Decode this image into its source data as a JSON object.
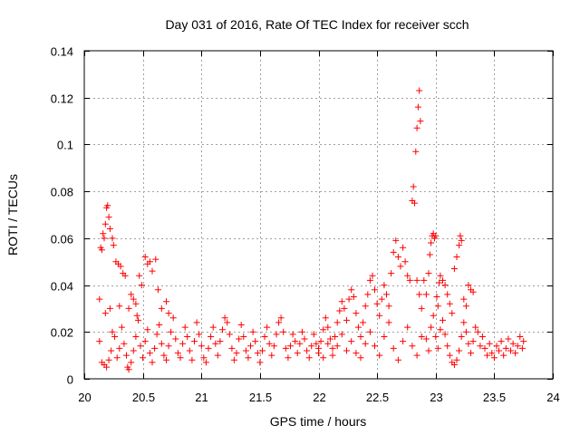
{
  "chart_data": {
    "type": "scatter",
    "title": "Day 031 of 2016, Rate Of TEC Index for receiver scch",
    "xlabel": "GPS time / hours",
    "ylabel": "ROTI / TECUs",
    "xlim": [
      20,
      24
    ],
    "ylim": [
      0,
      0.14
    ],
    "xticks": [
      20,
      20.5,
      21,
      21.5,
      22,
      22.5,
      23,
      23.5,
      24
    ],
    "xtick_labels": [
      "20",
      "20.5",
      "21",
      "21.5",
      "22",
      "22.5",
      "23",
      "23.5",
      "24"
    ],
    "yticks": [
      0,
      0.02,
      0.04,
      0.06,
      0.08,
      0.1,
      0.12,
      0.14
    ],
    "ytick_labels": [
      "0",
      "0.02",
      "0.04",
      "0.06",
      "0.08",
      "0.1",
      "0.12",
      "0.14"
    ],
    "grid": true,
    "marker": "+",
    "color": "#ff0000",
    "series": [
      {
        "name": "ROTI",
        "points": [
          [
            20.13,
            0.034
          ],
          [
            20.14,
            0.056
          ],
          [
            20.15,
            0.055
          ],
          [
            20.16,
            0.062
          ],
          [
            20.17,
            0.06
          ],
          [
            20.18,
            0.066
          ],
          [
            20.19,
            0.073
          ],
          [
            20.2,
            0.074
          ],
          [
            20.21,
            0.069
          ],
          [
            20.22,
            0.064
          ],
          [
            20.24,
            0.06
          ],
          [
            20.25,
            0.057
          ],
          [
            20.27,
            0.05
          ],
          [
            20.29,
            0.049
          ],
          [
            20.31,
            0.048
          ],
          [
            20.33,
            0.045
          ],
          [
            20.35,
            0.044
          ],
          [
            20.4,
            0.036
          ],
          [
            20.42,
            0.034
          ],
          [
            20.45,
            0.027
          ],
          [
            20.47,
            0.044
          ],
          [
            20.49,
            0.04
          ],
          [
            20.52,
            0.052
          ],
          [
            20.54,
            0.049
          ],
          [
            20.56,
            0.05
          ],
          [
            20.58,
            0.046
          ],
          [
            20.61,
            0.051
          ],
          [
            20.63,
            0.038
          ],
          [
            20.18,
            0.028
          ],
          [
            20.22,
            0.03
          ],
          [
            20.3,
            0.031
          ],
          [
            20.38,
            0.03
          ],
          [
            20.44,
            0.032
          ],
          [
            20.66,
            0.03
          ],
          [
            20.7,
            0.033
          ],
          [
            20.72,
            0.028
          ],
          [
            20.13,
            0.016
          ],
          [
            20.15,
            0.007
          ],
          [
            20.17,
            0.006
          ],
          [
            20.19,
            0.005
          ],
          [
            20.21,
            0.008
          ],
          [
            20.23,
            0.012
          ],
          [
            20.24,
            0.02
          ],
          [
            20.26,
            0.018
          ],
          [
            20.28,
            0.009
          ],
          [
            20.3,
            0.013
          ],
          [
            20.32,
            0.022
          ],
          [
            20.34,
            0.015
          ],
          [
            20.36,
            0.01
          ],
          [
            20.37,
            0.005
          ],
          [
            20.38,
            0.004
          ],
          [
            20.4,
            0.007
          ],
          [
            20.42,
            0.012
          ],
          [
            20.44,
            0.018
          ],
          [
            20.46,
            0.025
          ],
          [
            20.48,
            0.014
          ],
          [
            20.5,
            0.009
          ],
          [
            20.52,
            0.016
          ],
          [
            20.54,
            0.021
          ],
          [
            20.56,
            0.011
          ],
          [
            20.58,
            0.007
          ],
          [
            20.6,
            0.013
          ],
          [
            20.62,
            0.019
          ],
          [
            20.64,
            0.023
          ],
          [
            20.66,
            0.015
          ],
          [
            20.68,
            0.01
          ],
          [
            20.7,
            0.008
          ],
          [
            20.72,
            0.014
          ],
          [
            20.74,
            0.02
          ],
          [
            20.76,
            0.026
          ],
          [
            20.78,
            0.017
          ],
          [
            20.8,
            0.011
          ],
          [
            20.82,
            0.009
          ],
          [
            20.84,
            0.015
          ],
          [
            20.86,
            0.022
          ],
          [
            20.88,
            0.018
          ],
          [
            20.9,
            0.012
          ],
          [
            20.92,
            0.008
          ],
          [
            20.94,
            0.016
          ],
          [
            20.96,
            0.024
          ],
          [
            20.98,
            0.019
          ],
          [
            21.0,
            0.014
          ],
          [
            21.02,
            0.009
          ],
          [
            21.04,
            0.007
          ],
          [
            21.06,
            0.013
          ],
          [
            21.08,
            0.018
          ],
          [
            21.1,
            0.022
          ],
          [
            21.12,
            0.015
          ],
          [
            21.14,
            0.01
          ],
          [
            21.16,
            0.016
          ],
          [
            21.18,
            0.021
          ],
          [
            21.2,
            0.026
          ],
          [
            21.22,
            0.024
          ],
          [
            21.24,
            0.019
          ],
          [
            21.26,
            0.013
          ],
          [
            21.28,
            0.008
          ],
          [
            21.3,
            0.011
          ],
          [
            21.32,
            0.017
          ],
          [
            21.34,
            0.023
          ],
          [
            21.36,
            0.018
          ],
          [
            21.38,
            0.012
          ],
          [
            21.4,
            0.009
          ],
          [
            21.42,
            0.014
          ],
          [
            21.44,
            0.02
          ],
          [
            21.46,
            0.016
          ],
          [
            21.48,
            0.011
          ],
          [
            21.5,
            0.007
          ],
          [
            21.52,
            0.012
          ],
          [
            21.54,
            0.018
          ],
          [
            21.56,
            0.022
          ],
          [
            21.58,
            0.015
          ],
          [
            21.6,
            0.01
          ],
          [
            21.62,
            0.014
          ],
          [
            21.64,
            0.019
          ],
          [
            21.66,
            0.024
          ],
          [
            21.68,
            0.026
          ],
          [
            21.7,
            0.02
          ],
          [
            21.72,
            0.013
          ],
          [
            21.74,
            0.009
          ],
          [
            21.76,
            0.014
          ],
          [
            21.78,
            0.019
          ],
          [
            21.8,
            0.016
          ],
          [
            21.82,
            0.011
          ],
          [
            21.84,
            0.015
          ],
          [
            21.86,
            0.02
          ],
          [
            21.88,
            0.017
          ],
          [
            21.9,
            0.012
          ],
          [
            21.92,
            0.009
          ],
          [
            21.94,
            0.014
          ],
          [
            21.96,
            0.019
          ],
          [
            21.98,
            0.015
          ],
          [
            22.0,
            0.011
          ],
          [
            22.02,
            0.016
          ],
          [
            22.04,
            0.021
          ],
          [
            22.06,
            0.026
          ],
          [
            22.08,
            0.022
          ],
          [
            22.1,
            0.017
          ],
          [
            22.12,
            0.013
          ],
          [
            22.14,
            0.018
          ],
          [
            22.16,
            0.024
          ],
          [
            22.18,
            0.029
          ],
          [
            22.2,
            0.033
          ],
          [
            22.22,
            0.03
          ],
          [
            22.24,
            0.025
          ],
          [
            22.26,
            0.034
          ],
          [
            22.28,
            0.038
          ],
          [
            22.3,
            0.035
          ],
          [
            22.32,
            0.028
          ],
          [
            22.34,
            0.022
          ],
          [
            22.36,
            0.018
          ],
          [
            22.38,
            0.024
          ],
          [
            22.4,
            0.031
          ],
          [
            22.42,
            0.036
          ],
          [
            22.44,
            0.042
          ],
          [
            22.46,
            0.044
          ],
          [
            22.48,
            0.038
          ],
          [
            22.5,
            0.032
          ],
          [
            22.52,
            0.027
          ],
          [
            22.54,
            0.034
          ],
          [
            22.56,
            0.04
          ],
          [
            22.58,
            0.036
          ],
          [
            22.6,
            0.031
          ],
          [
            22.62,
            0.045
          ],
          [
            22.64,
            0.054
          ],
          [
            22.66,
            0.059
          ],
          [
            22.68,
            0.052
          ],
          [
            22.7,
            0.048
          ],
          [
            22.72,
            0.056
          ],
          [
            22.74,
            0.05
          ],
          [
            22.76,
            0.044
          ],
          [
            22.78,
            0.042
          ],
          [
            22.8,
            0.076
          ],
          [
            22.81,
            0.082
          ],
          [
            22.82,
            0.075
          ],
          [
            22.83,
            0.097
          ],
          [
            22.84,
            0.107
          ],
          [
            22.85,
            0.116
          ],
          [
            22.86,
            0.123
          ],
          [
            22.87,
            0.11
          ],
          [
            22.84,
            0.042
          ],
          [
            22.86,
            0.036
          ],
          [
            22.88,
            0.03
          ],
          [
            22.0,
            0.013
          ],
          [
            22.04,
            0.009
          ],
          [
            22.08,
            0.015
          ],
          [
            22.12,
            0.01
          ],
          [
            22.16,
            0.014
          ],
          [
            22.2,
            0.019
          ],
          [
            22.24,
            0.012
          ],
          [
            22.28,
            0.016
          ],
          [
            22.32,
            0.011
          ],
          [
            22.36,
            0.009
          ],
          [
            22.4,
            0.015
          ],
          [
            22.44,
            0.02
          ],
          [
            22.48,
            0.014
          ],
          [
            22.52,
            0.01
          ],
          [
            22.56,
            0.018
          ],
          [
            22.6,
            0.024
          ],
          [
            22.64,
            0.013
          ],
          [
            22.68,
            0.008
          ],
          [
            22.72,
            0.016
          ],
          [
            22.76,
            0.022
          ],
          [
            22.8,
            0.014
          ],
          [
            22.84,
            0.01
          ],
          [
            22.88,
            0.018
          ],
          [
            22.9,
            0.042
          ],
          [
            22.92,
            0.036
          ],
          [
            22.94,
            0.045
          ],
          [
            22.95,
            0.053
          ],
          [
            22.96,
            0.058
          ],
          [
            22.97,
            0.061
          ],
          [
            22.98,
            0.062
          ],
          [
            22.99,
            0.06
          ],
          [
            23.0,
            0.061
          ],
          [
            23.01,
            0.035
          ],
          [
            23.02,
            0.031
          ],
          [
            23.03,
            0.041
          ],
          [
            23.04,
            0.044
          ],
          [
            23.06,
            0.042
          ],
          [
            23.08,
            0.04
          ],
          [
            23.1,
            0.036
          ],
          [
            23.12,
            0.032
          ],
          [
            23.14,
            0.028
          ],
          [
            23.16,
            0.047
          ],
          [
            23.18,
            0.052
          ],
          [
            23.2,
            0.057
          ],
          [
            23.21,
            0.061
          ],
          [
            23.22,
            0.059
          ],
          [
            23.24,
            0.034
          ],
          [
            23.26,
            0.031
          ],
          [
            23.28,
            0.04
          ],
          [
            23.3,
            0.038
          ],
          [
            23.32,
            0.037
          ],
          [
            22.92,
            0.017
          ],
          [
            22.94,
            0.012
          ],
          [
            22.96,
            0.022
          ],
          [
            22.98,
            0.027
          ],
          [
            23.0,
            0.018
          ],
          [
            23.02,
            0.013
          ],
          [
            23.04,
            0.021
          ],
          [
            23.06,
            0.025
          ],
          [
            23.08,
            0.019
          ],
          [
            23.1,
            0.014
          ],
          [
            23.12,
            0.01
          ],
          [
            23.14,
            0.007
          ],
          [
            23.16,
            0.006
          ],
          [
            23.18,
            0.008
          ],
          [
            23.2,
            0.012
          ],
          [
            23.22,
            0.018
          ],
          [
            23.24,
            0.024
          ],
          [
            23.26,
            0.02
          ],
          [
            23.28,
            0.015
          ],
          [
            23.3,
            0.011
          ],
          [
            23.32,
            0.016
          ],
          [
            23.34,
            0.022
          ],
          [
            23.36,
            0.02
          ],
          [
            23.38,
            0.014
          ],
          [
            23.4,
            0.018
          ],
          [
            23.42,
            0.013
          ],
          [
            23.44,
            0.01
          ],
          [
            23.46,
            0.015
          ],
          [
            23.48,
            0.011
          ],
          [
            23.5,
            0.009
          ],
          [
            23.52,
            0.014
          ],
          [
            23.54,
            0.012
          ],
          [
            23.56,
            0.016
          ],
          [
            23.58,
            0.01
          ],
          [
            23.6,
            0.013
          ],
          [
            23.62,
            0.017
          ],
          [
            23.64,
            0.012
          ],
          [
            23.66,
            0.015
          ],
          [
            23.68,
            0.011
          ],
          [
            23.7,
            0.014
          ],
          [
            23.72,
            0.018
          ],
          [
            23.74,
            0.013
          ],
          [
            23.75,
            0.016
          ]
        ]
      }
    ]
  }
}
